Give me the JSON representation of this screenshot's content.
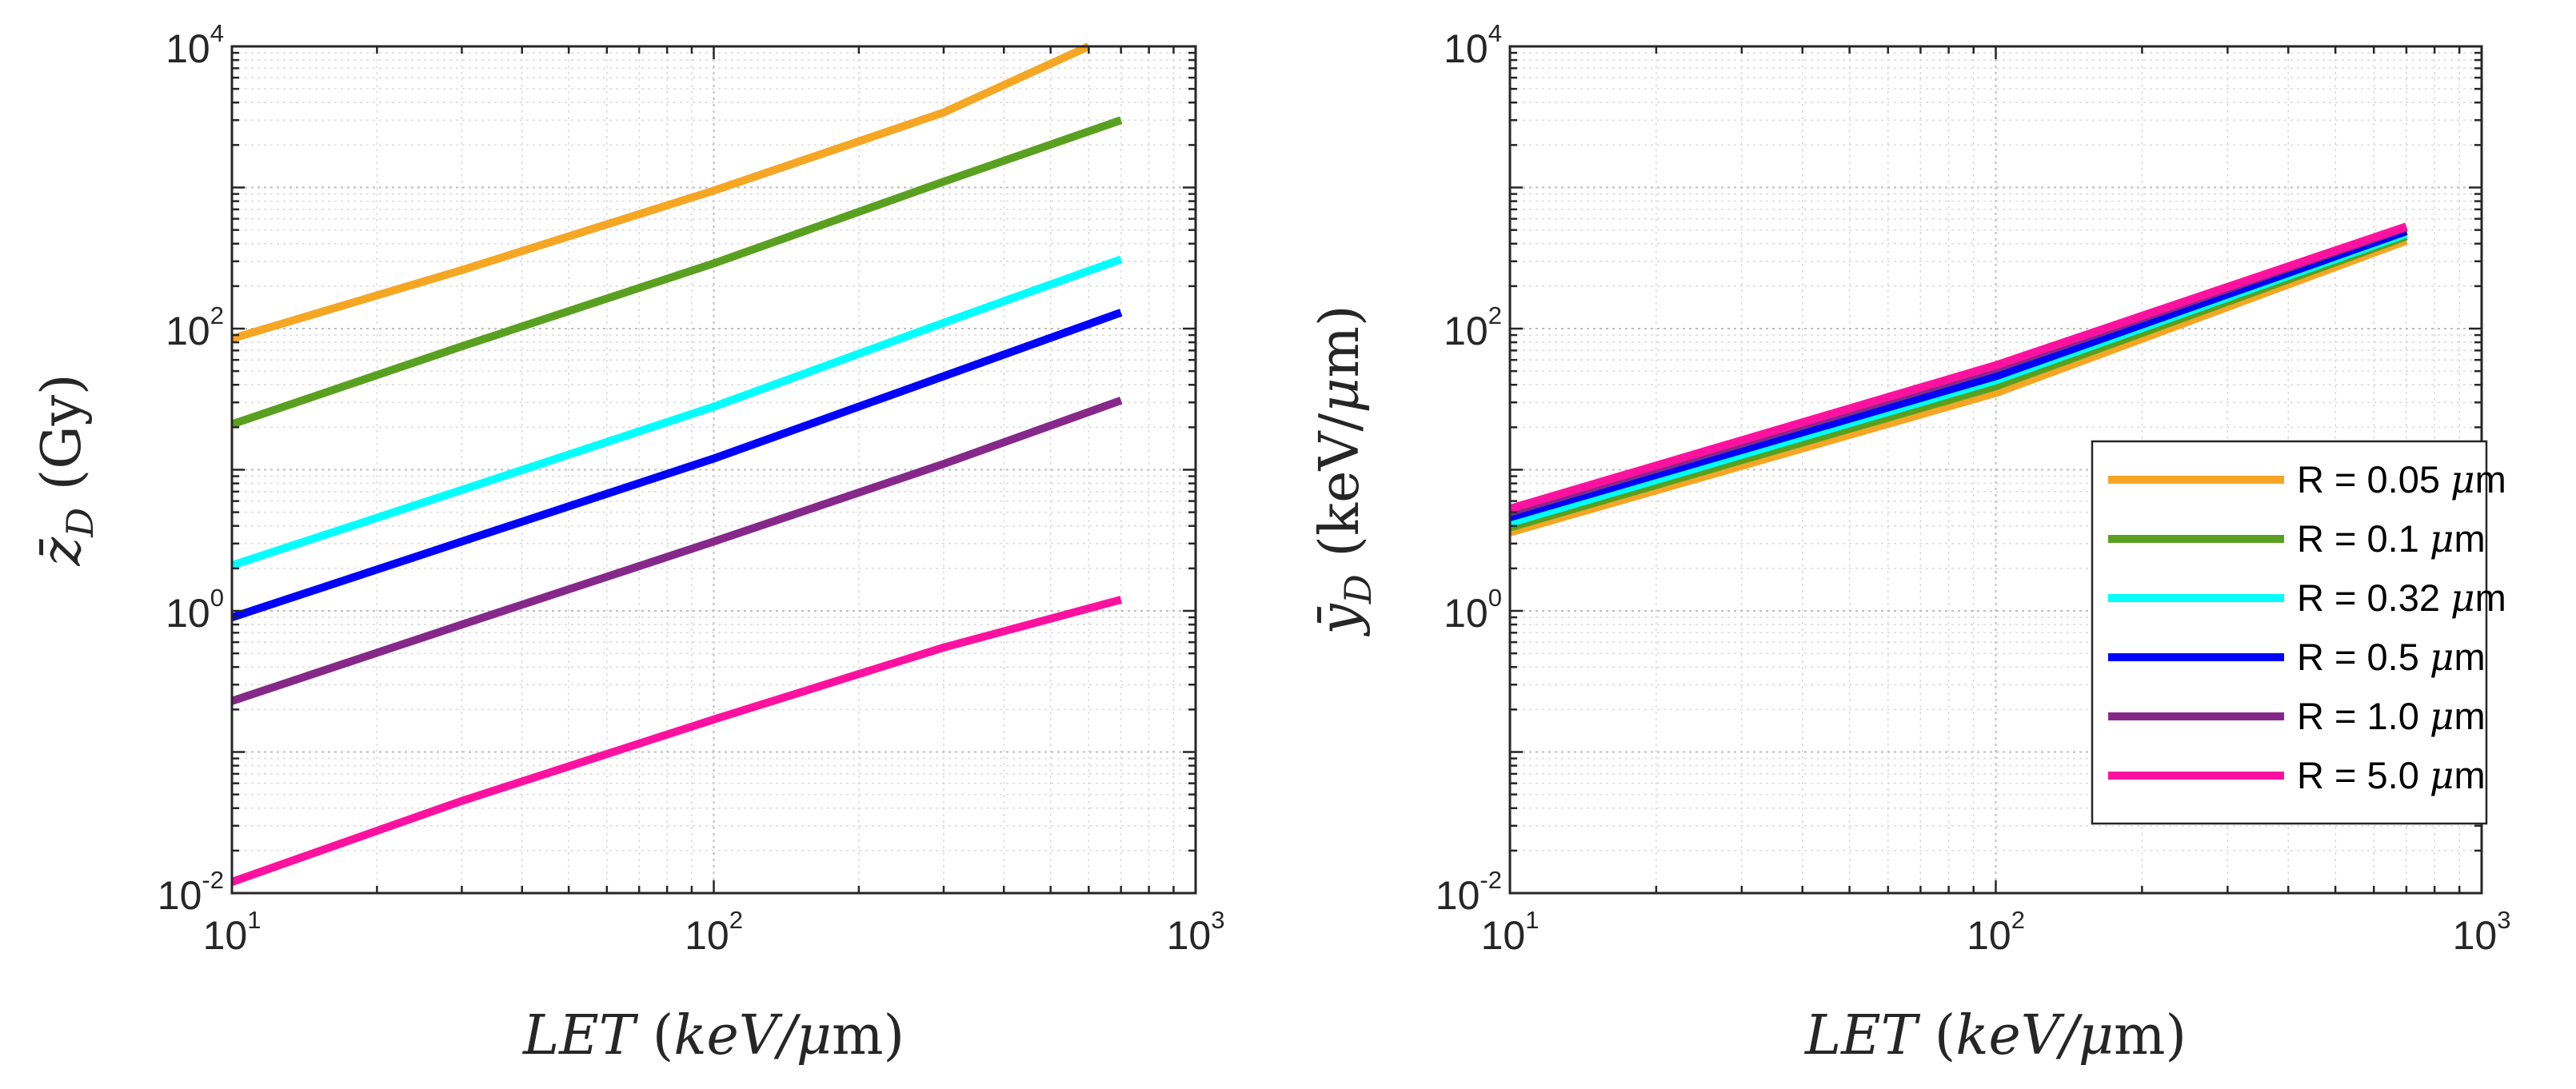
{
  "chart_data": [
    {
      "type": "line",
      "title": "",
      "xlabel": "LET (keV/μm)",
      "xlabel_parts": {
        "var": "LET",
        "unit_l": " (",
        "unit": "keV/",
        "mu": "μ",
        "unit_r": "m)"
      },
      "ylabel": "z̄_D (Gy)",
      "ylabel_parts": {
        "var": "z̄",
        "sub": "D",
        "unit": " (Gy)"
      },
      "xscale": "log",
      "yscale": "log",
      "xlim": [
        10,
        1000
      ],
      "ylim": [
        0.01,
        10000
      ],
      "grid": true,
      "xticks": [
        {
          "base": "10",
          "exp": "1"
        },
        {
          "base": "10",
          "exp": "2"
        },
        {
          "base": "10",
          "exp": "3"
        }
      ],
      "yticks": [
        {
          "base": "10",
          "exp": "-2"
        },
        {
          "base": "10",
          "exp": "0"
        },
        {
          "base": "10",
          "exp": "2"
        },
        {
          "base": "10",
          "exp": "4"
        }
      ],
      "series": [
        {
          "name": "R = 0.05 μm",
          "color": "#f5a623",
          "x": [
            10,
            30,
            100,
            300,
            600
          ],
          "y": [
            85,
            260,
            950,
            3400,
            10000
          ]
        },
        {
          "name": "R = 0.1 μm",
          "color": "#5aa020",
          "x": [
            10,
            30,
            100,
            300,
            700
          ],
          "y": [
            21,
            75,
            290,
            1100,
            3000
          ]
        },
        {
          "name": "R = 0.32 μm",
          "color": "#00ffff",
          "x": [
            10,
            30,
            100,
            300,
            700
          ],
          "y": [
            2.1,
            7.2,
            28,
            110,
            310
          ]
        },
        {
          "name": "R = 0.5 μm",
          "color": "#0000ff",
          "x": [
            10,
            30,
            100,
            300,
            700
          ],
          "y": [
            0.9,
            3.1,
            12,
            46,
            130
          ]
        },
        {
          "name": "R = 1.0 μm",
          "color": "#86288a",
          "x": [
            10,
            30,
            100,
            300,
            700
          ],
          "y": [
            0.23,
            0.8,
            3.1,
            11,
            31
          ]
        },
        {
          "name": "R = 5.0 μm",
          "color": "#ff11a0",
          "x": [
            10,
            30,
            100,
            300,
            700
          ],
          "y": [
            0.012,
            0.045,
            0.17,
            0.55,
            1.2
          ]
        }
      ]
    },
    {
      "type": "line",
      "title": "",
      "xlabel": "LET (keV/μm)",
      "xlabel_parts": {
        "var": "LET",
        "unit_l": " (",
        "unit": "keV/",
        "mu": "μ",
        "unit_r": "m)"
      },
      "ylabel": "ȳ_D (keV/μm)",
      "ylabel_parts": {
        "var": "ȳ",
        "sub": "D",
        "unit": " (keV/",
        "mu": "μ",
        "unit_r": "m)"
      },
      "xscale": "log",
      "yscale": "log",
      "xlim": [
        10,
        1000
      ],
      "ylim": [
        0.01,
        10000
      ],
      "grid": true,
      "legend_position": "right",
      "xticks": [
        {
          "base": "10",
          "exp": "1"
        },
        {
          "base": "10",
          "exp": "2"
        },
        {
          "base": "10",
          "exp": "3"
        }
      ],
      "yticks": [
        {
          "base": "10",
          "exp": "-2"
        },
        {
          "base": "10",
          "exp": "0"
        },
        {
          "base": "10",
          "exp": "2"
        },
        {
          "base": "10",
          "exp": "4"
        }
      ],
      "series": [
        {
          "name": "R = 0.05 μm",
          "color": "#f5a623",
          "x": [
            10,
            100,
            700
          ],
          "y": [
            3.6,
            35,
            420
          ]
        },
        {
          "name": "R = 0.1 μm",
          "color": "#5aa020",
          "x": [
            10,
            100,
            700
          ],
          "y": [
            3.9,
            39,
            450
          ]
        },
        {
          "name": "R = 0.32 μm",
          "color": "#00ffff",
          "x": [
            10,
            100,
            700
          ],
          "y": [
            4.2,
            43,
            470
          ]
        },
        {
          "name": "R = 0.5 μm",
          "color": "#0000ff",
          "x": [
            10,
            100,
            700
          ],
          "y": [
            4.6,
            46,
            490
          ]
        },
        {
          "name": "R = 1.0 μm",
          "color": "#86288a",
          "x": [
            10,
            100,
            700
          ],
          "y": [
            5.0,
            52,
            520
          ]
        },
        {
          "name": "R = 5.0 μm",
          "color": "#ff11a0",
          "x": [
            10,
            100,
            700
          ],
          "y": [
            5.3,
            55,
            530
          ]
        }
      ]
    }
  ],
  "legend": {
    "entries": [
      {
        "prefix": "R = 0.05 ",
        "mu": "μ",
        "unit": "m",
        "color": "#f5a623"
      },
      {
        "prefix": "R = 0.1 ",
        "mu": "μ",
        "unit": "m",
        "color": "#5aa020"
      },
      {
        "prefix": "R = 0.32 ",
        "mu": "μ",
        "unit": "m",
        "color": "#00ffff"
      },
      {
        "prefix": "R = 0.5 ",
        "mu": "μ",
        "unit": "m",
        "color": "#0000ff"
      },
      {
        "prefix": "R = 1.0 ",
        "mu": "μ",
        "unit": "m",
        "color": "#86288a"
      },
      {
        "prefix": "R = 5.0 ",
        "mu": "μ",
        "unit": "m",
        "color": "#ff11a0"
      }
    ]
  }
}
